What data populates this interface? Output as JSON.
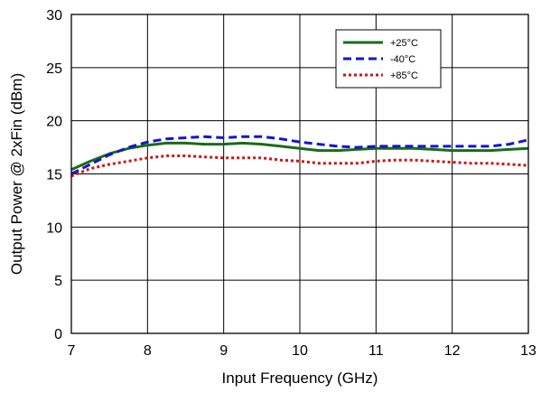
{
  "chart_data": {
    "type": "line",
    "title": "",
    "xlabel": "Input Frequency (GHz)",
    "ylabel": "Output Power @ 2xFin (dBm)",
    "xlim": [
      7,
      13
    ],
    "ylim": [
      0,
      30
    ],
    "x_ticks": [
      "7",
      "8",
      "9",
      "10",
      "11",
      "12",
      "13"
    ],
    "y_ticks": [
      "0",
      "5",
      "10",
      "15",
      "20",
      "25",
      "30"
    ],
    "grid": true,
    "legend_position": "top-right",
    "series": [
      {
        "name": "+25°C",
        "color": "#1a6b1a",
        "style": "solid",
        "x": [
          7.0,
          7.25,
          7.5,
          7.75,
          8.0,
          8.25,
          8.5,
          8.75,
          9.0,
          9.25,
          9.5,
          9.75,
          10.0,
          10.25,
          10.5,
          10.75,
          11.0,
          11.25,
          11.5,
          11.75,
          12.0,
          12.25,
          12.5,
          12.75,
          13.0
        ],
        "values": [
          15.4,
          16.2,
          16.9,
          17.4,
          17.7,
          17.9,
          17.9,
          17.8,
          17.8,
          17.9,
          17.8,
          17.6,
          17.4,
          17.2,
          17.2,
          17.3,
          17.4,
          17.4,
          17.4,
          17.3,
          17.2,
          17.2,
          17.2,
          17.3,
          17.4
        ]
      },
      {
        "name": "-40°C",
        "color": "#1515cc",
        "style": "dashed",
        "x": [
          7.0,
          7.25,
          7.5,
          7.75,
          8.0,
          8.25,
          8.5,
          8.75,
          9.0,
          9.25,
          9.5,
          9.75,
          10.0,
          10.25,
          10.5,
          10.75,
          11.0,
          11.25,
          11.5,
          11.75,
          12.0,
          12.25,
          12.5,
          12.75,
          13.0
        ],
        "values": [
          15.0,
          15.9,
          16.8,
          17.5,
          18.0,
          18.3,
          18.4,
          18.5,
          18.4,
          18.5,
          18.5,
          18.3,
          18.0,
          17.8,
          17.6,
          17.5,
          17.6,
          17.6,
          17.6,
          17.6,
          17.6,
          17.6,
          17.6,
          17.8,
          18.2
        ]
      },
      {
        "name": "+85°C",
        "color": "#cc1414",
        "style": "dotted",
        "x": [
          7.0,
          7.25,
          7.5,
          7.75,
          8.0,
          8.25,
          8.5,
          8.75,
          9.0,
          9.25,
          9.5,
          9.75,
          10.0,
          10.25,
          10.5,
          10.75,
          11.0,
          11.25,
          11.5,
          11.75,
          12.0,
          12.25,
          12.5,
          12.75,
          13.0
        ],
        "values": [
          14.8,
          15.5,
          15.9,
          16.2,
          16.5,
          16.7,
          16.7,
          16.6,
          16.5,
          16.5,
          16.5,
          16.3,
          16.2,
          16.0,
          16.0,
          16.0,
          16.2,
          16.3,
          16.3,
          16.2,
          16.1,
          16.0,
          16.0,
          15.9,
          15.8
        ]
      }
    ]
  }
}
